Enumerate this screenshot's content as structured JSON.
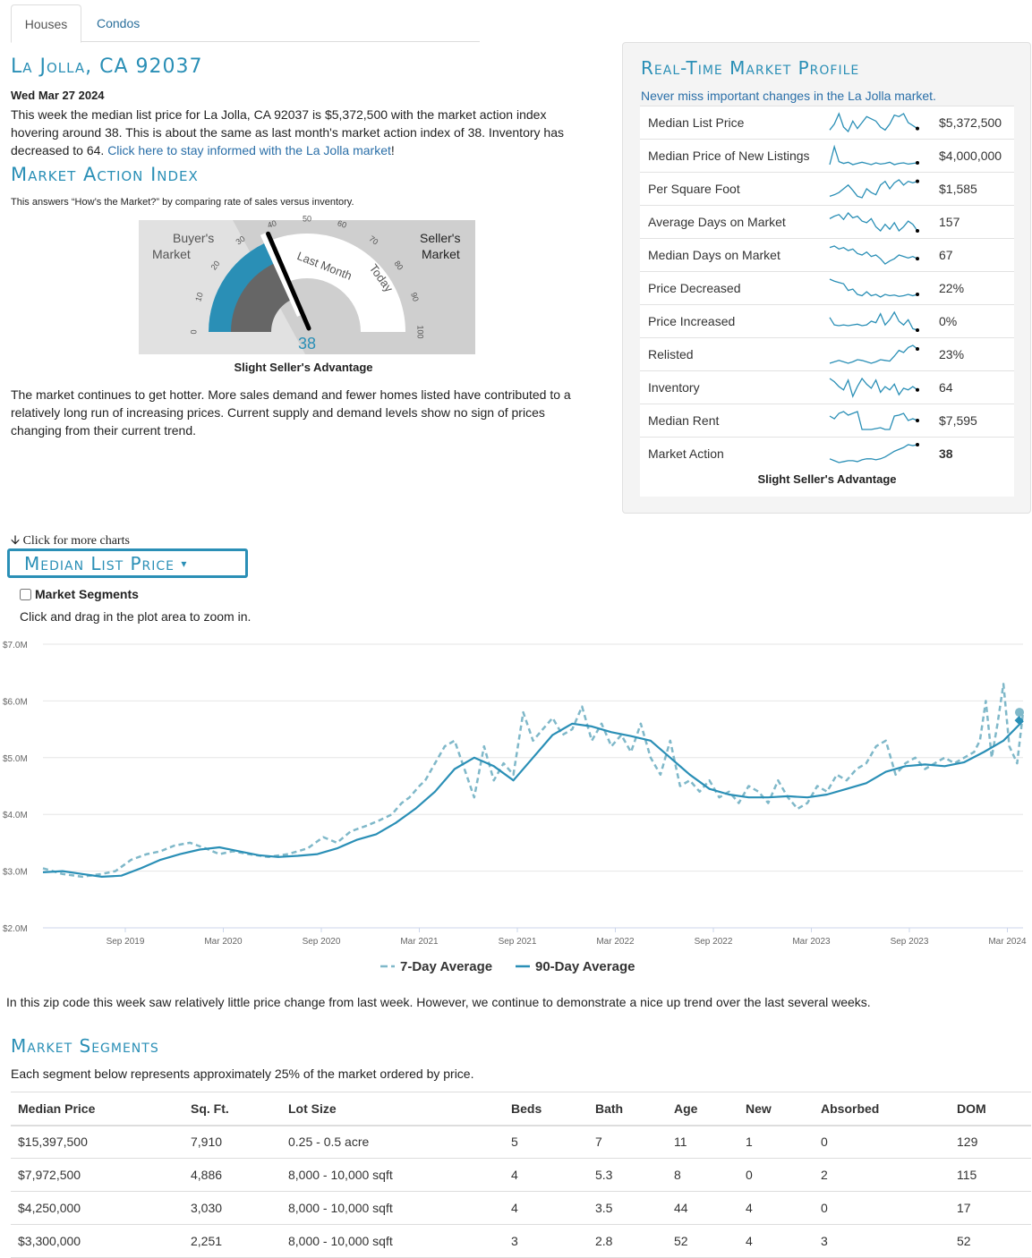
{
  "tabs": [
    {
      "label": "Houses",
      "active": true
    },
    {
      "label": "Condos",
      "active": false
    }
  ],
  "location_title": "La Jolla, CA 92037",
  "report_date": "Wed Mar 27 2024",
  "intro": {
    "text": "This week the median list price for La Jolla, CA 92037 is $5,372,500 with the market action index hovering around 38. This is about the same as last month's market action index of 38. Inventory has decreased to 64. ",
    "link_text": "Click here to stay informed with the La Jolla market",
    "suffix": "!"
  },
  "market_action": {
    "title": "Market Action Index",
    "subtitle": "This answers “How’s the Market?” by comparing rate of sales versus inventory.",
    "gauge": {
      "buyers_label_1": "Buyer's",
      "buyers_label_2": "Market",
      "sellers_label_1": "Seller's",
      "sellers_label_2": "Market",
      "ticks": [
        "0",
        "10",
        "20",
        "30",
        "40",
        "50",
        "60",
        "70",
        "80",
        "90",
        "100"
      ],
      "last_month_label": "Last Month",
      "today_label": "Today",
      "value": 38,
      "value_text": "38",
      "last_month_value": 38
    },
    "caption": "Slight Seller's Advantage",
    "description": "The market continues to get hotter. More sales demand and fewer homes listed have contributed to a relatively long run of increasing prices. Current supply and demand levels show no sign of prices changing from their current trend."
  },
  "profile": {
    "title": "Real-Time Market Profile",
    "subtitle": "Never miss important changes in the La Jolla market.",
    "rows": [
      {
        "label": "Median List Price",
        "value": "$5,372,500",
        "bold": false,
        "spark": [
          40,
          48,
          62,
          44,
          38,
          52,
          42,
          50,
          58,
          55,
          52,
          44,
          40,
          48,
          60,
          58,
          62,
          50,
          46,
          42
        ]
      },
      {
        "label": "Median Price of New Listings",
        "value": "$4,000,000",
        "bold": false,
        "spark": [
          50,
          80,
          55,
          52,
          54,
          50,
          52,
          54,
          52,
          50,
          53,
          51,
          52,
          54,
          50,
          52,
          53,
          51,
          52,
          53
        ]
      },
      {
        "label": "Per Square Foot",
        "value": "$1,585",
        "bold": false,
        "spark": [
          40,
          42,
          45,
          50,
          55,
          48,
          40,
          38,
          50,
          45,
          42,
          55,
          60,
          50,
          58,
          62,
          55,
          60,
          58,
          60
        ]
      },
      {
        "label": "Average Days on Market",
        "value": "157",
        "bold": false,
        "spark": [
          55,
          58,
          60,
          54,
          62,
          56,
          58,
          52,
          50,
          55,
          45,
          40,
          48,
          42,
          50,
          40,
          45,
          52,
          48,
          40
        ]
      },
      {
        "label": "Median Days on Market",
        "value": "67",
        "bold": false,
        "spark": [
          60,
          62,
          58,
          60,
          56,
          58,
          52,
          50,
          54,
          48,
          50,
          45,
          38,
          42,
          45,
          50,
          48,
          46,
          48,
          45
        ]
      },
      {
        "label": "Price Decreased",
        "value": "22%",
        "bold": false,
        "spark": [
          65,
          62,
          60,
          58,
          48,
          50,
          42,
          40,
          46,
          40,
          42,
          38,
          42,
          40,
          41,
          39,
          40,
          42,
          40,
          42
        ]
      },
      {
        "label": "Price Increased",
        "value": "0%",
        "bold": false,
        "spark": [
          55,
          45,
          44,
          45,
          44,
          45,
          46,
          44,
          45,
          50,
          48,
          60,
          45,
          52,
          62,
          50,
          45,
          52,
          40,
          38
        ]
      },
      {
        "label": "Relisted",
        "value": "23%",
        "bold": false,
        "spark": [
          40,
          42,
          44,
          42,
          40,
          42,
          45,
          44,
          42,
          40,
          42,
          45,
          44,
          43,
          50,
          58,
          55,
          62,
          65,
          60
        ]
      },
      {
        "label": "Inventory",
        "value": "64",
        "bold": false,
        "spark": [
          62,
          58,
          52,
          48,
          60,
          40,
          52,
          62,
          55,
          50,
          60,
          45,
          52,
          48,
          55,
          42,
          50,
          48,
          52,
          48
        ]
      },
      {
        "label": "Median Rent",
        "value": "$7,595",
        "bold": false,
        "spark": [
          55,
          52,
          58,
          60,
          56,
          58,
          60,
          40,
          40,
          40,
          41,
          42,
          40,
          40,
          55,
          56,
          58,
          50,
          52,
          50
        ]
      },
      {
        "label": "Market Action",
        "value": "38",
        "bold": true,
        "spark": [
          40,
          38,
          36,
          37,
          38,
          38,
          37,
          39,
          40,
          40,
          39,
          40,
          42,
          45,
          48,
          50,
          52,
          55,
          54,
          55
        ]
      }
    ],
    "caption": "Slight Seller's Advantage"
  },
  "more_charts": "Click for more charts",
  "chart_selector": "Median List Price",
  "market_segments_toggle": "Market Segments",
  "zoom_hint": "Click and drag in the plot area to zoom in.",
  "chart_data": {
    "type": "line",
    "title": "",
    "xlabel": "",
    "ylabel": "",
    "ylim": [
      2.0,
      7.0
    ],
    "y_ticks": [
      "$2.0M",
      "$3.0M",
      "$4.0M",
      "$5.0M",
      "$6.0M",
      "$7.0M"
    ],
    "x_ticks": [
      "Sep 2019",
      "Mar 2020",
      "Sep 2020",
      "Mar 2021",
      "Sep 2021",
      "Mar 2022",
      "Sep 2022",
      "Mar 2023",
      "Sep 2023",
      "Mar 2024"
    ],
    "x_tick_values": [
      2019.67,
      2020.17,
      2020.67,
      2021.17,
      2021.67,
      2022.17,
      2022.67,
      2023.17,
      2023.67,
      2024.17
    ],
    "xlim": [
      2019.25,
      2024.25
    ],
    "grid": true,
    "legend": "bottom-center",
    "series": [
      {
        "name": "7-Day Average",
        "style": "dashed",
        "color": "#7fb8c9",
        "x": [
          2019.25,
          2019.35,
          2019.45,
          2019.55,
          2019.62,
          2019.7,
          2019.78,
          2019.85,
          2019.92,
          2020.0,
          2020.08,
          2020.15,
          2020.22,
          2020.3,
          2020.4,
          2020.5,
          2020.6,
          2020.68,
          2020.75,
          2020.82,
          2020.9,
          2020.97,
          2021.03,
          2021.08,
          2021.12,
          2021.17,
          2021.2,
          2021.25,
          2021.3,
          2021.35,
          2021.4,
          2021.45,
          2021.5,
          2021.55,
          2021.6,
          2021.65,
          2021.7,
          2021.75,
          2021.8,
          2021.85,
          2021.9,
          2021.95,
          2022.0,
          2022.05,
          2022.1,
          2022.15,
          2022.2,
          2022.25,
          2022.3,
          2022.35,
          2022.4,
          2022.45,
          2022.5,
          2022.55,
          2022.6,
          2022.65,
          2022.7,
          2022.75,
          2022.8,
          2022.85,
          2022.9,
          2022.95,
          2023.0,
          2023.05,
          2023.1,
          2023.15,
          2023.2,
          2023.25,
          2023.3,
          2023.35,
          2023.4,
          2023.45,
          2023.5,
          2023.55,
          2023.6,
          2023.65,
          2023.7,
          2023.75,
          2023.8,
          2023.85,
          2023.9,
          2023.95,
          2024.0,
          2024.03,
          2024.06,
          2024.09,
          2024.12,
          2024.15,
          2024.18,
          2024.22,
          2024.25
        ],
        "y": [
          3.05,
          2.95,
          2.9,
          2.95,
          3.0,
          3.2,
          3.3,
          3.35,
          3.45,
          3.5,
          3.4,
          3.3,
          3.35,
          3.3,
          3.25,
          3.3,
          3.4,
          3.6,
          3.5,
          3.7,
          3.8,
          3.9,
          4.0,
          4.2,
          4.3,
          4.5,
          4.6,
          4.9,
          5.2,
          5.3,
          4.8,
          4.3,
          5.2,
          4.6,
          4.9,
          4.7,
          5.8,
          5.3,
          5.5,
          5.7,
          5.4,
          5.5,
          5.9,
          5.3,
          5.6,
          5.2,
          5.4,
          5.1,
          5.6,
          5.0,
          4.7,
          5.3,
          4.5,
          4.6,
          4.4,
          4.6,
          4.3,
          4.4,
          4.2,
          4.5,
          4.4,
          4.2,
          4.6,
          4.3,
          4.1,
          4.2,
          4.5,
          4.4,
          4.7,
          4.6,
          4.8,
          4.9,
          5.2,
          5.3,
          4.7,
          4.9,
          5.0,
          4.8,
          4.9,
          5.0,
          4.9,
          5.0,
          5.1,
          5.3,
          6.0,
          5.0,
          5.6,
          6.3,
          5.2,
          4.9,
          5.8
        ]
      },
      {
        "name": "90-Day Average",
        "style": "solid",
        "color": "#2a8fb6",
        "x": [
          2019.25,
          2019.35,
          2019.45,
          2019.55,
          2019.65,
          2019.75,
          2019.85,
          2019.95,
          2020.05,
          2020.15,
          2020.25,
          2020.35,
          2020.45,
          2020.55,
          2020.65,
          2020.75,
          2020.85,
          2020.95,
          2021.05,
          2021.15,
          2021.25,
          2021.35,
          2021.45,
          2021.55,
          2021.65,
          2021.75,
          2021.85,
          2021.95,
          2022.05,
          2022.15,
          2022.25,
          2022.35,
          2022.45,
          2022.55,
          2022.65,
          2022.75,
          2022.85,
          2022.95,
          2023.05,
          2023.15,
          2023.25,
          2023.35,
          2023.45,
          2023.55,
          2023.65,
          2023.75,
          2023.85,
          2023.95,
          2024.05,
          2024.15,
          2024.25
        ],
        "y": [
          2.98,
          3.0,
          2.95,
          2.9,
          2.92,
          3.05,
          3.2,
          3.3,
          3.38,
          3.42,
          3.35,
          3.28,
          3.25,
          3.27,
          3.3,
          3.4,
          3.55,
          3.65,
          3.85,
          4.1,
          4.4,
          4.8,
          5.0,
          4.85,
          4.6,
          5.0,
          5.4,
          5.6,
          5.55,
          5.45,
          5.38,
          5.3,
          5.0,
          4.7,
          4.45,
          4.35,
          4.3,
          4.3,
          4.32,
          4.3,
          4.35,
          4.45,
          4.55,
          4.75,
          4.85,
          4.88,
          4.85,
          4.92,
          5.1,
          5.3,
          5.65
        ]
      }
    ]
  },
  "chart_summary": "In this zip code this week saw relatively little price change from last week. However, we continue to demonstrate a nice up trend over the last several weeks.",
  "segments": {
    "title": "Market Segments",
    "subtitle": "Each segment below represents approximately 25% of the market ordered by price.",
    "headers": [
      "Median Price",
      "Sq. Ft.",
      "Lot Size",
      "Beds",
      "Bath",
      "Age",
      "New",
      "Absorbed",
      "DOM"
    ],
    "rows": [
      [
        "$15,397,500",
        "7,910",
        "0.25 - 0.5 acre",
        "5",
        "7",
        "11",
        "1",
        "0",
        "129"
      ],
      [
        "$7,972,500",
        "4,886",
        "8,000 - 10,000 sqft",
        "4",
        "5.3",
        "8",
        "0",
        "2",
        "115"
      ],
      [
        "$4,250,000",
        "3,030",
        "8,000 - 10,000 sqft",
        "4",
        "3.5",
        "44",
        "4",
        "0",
        "17"
      ],
      [
        "$3,300,000",
        "2,251",
        "8,000 - 10,000 sqft",
        "3",
        "2.8",
        "52",
        "4",
        "3",
        "52"
      ]
    ]
  }
}
